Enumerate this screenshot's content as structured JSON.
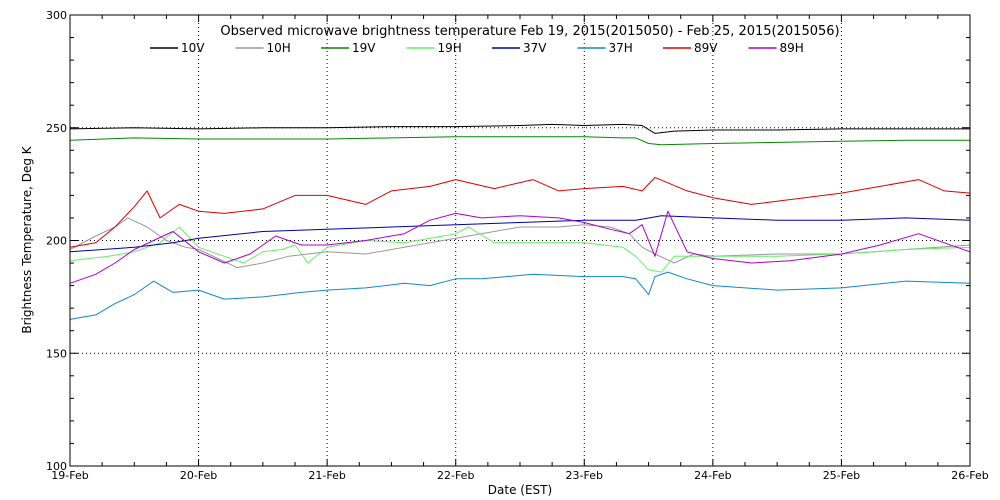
{
  "chart_data": {
    "type": "line",
    "title": "Observed microwave brightness temperature Feb 19, 2015(2015050) - Feb 25, 2015(2015056)",
    "xlabel": "Date (EST)",
    "ylabel": "Brightness Temperature, Deg K",
    "xlim": [
      0,
      7
    ],
    "ylim": [
      100,
      300
    ],
    "x_ticks": [
      {
        "value": 0,
        "label": "19-Feb"
      },
      {
        "value": 1,
        "label": "20-Feb"
      },
      {
        "value": 2,
        "label": "21-Feb"
      },
      {
        "value": 3,
        "label": "22-Feb"
      },
      {
        "value": 4,
        "label": "23-Feb"
      },
      {
        "value": 5,
        "label": "24-Feb"
      },
      {
        "value": 6,
        "label": "25-Feb"
      },
      {
        "value": 7,
        "label": "26-Feb"
      }
    ],
    "y_ticks": [
      {
        "value": 100,
        "label": "100"
      },
      {
        "value": 150,
        "label": "150"
      },
      {
        "value": 200,
        "label": "200"
      },
      {
        "value": 250,
        "label": "250"
      },
      {
        "value": 300,
        "label": "300"
      }
    ],
    "grid": "dotted",
    "legend": "top",
    "series": [
      {
        "name": "10V",
        "color": "#000000",
        "x": [
          0,
          0.5,
          1,
          1.5,
          2,
          2.5,
          3,
          3.5,
          3.75,
          4,
          4.3,
          4.45,
          4.55,
          4.7,
          5,
          5.5,
          6,
          6.5,
          7
        ],
        "y": [
          249.5,
          250,
          249.5,
          250,
          250,
          250.5,
          250.5,
          251,
          251.5,
          251,
          251.5,
          251,
          247.5,
          248.5,
          249,
          249,
          249.5,
          249.5,
          249.5
        ]
      },
      {
        "name": "10H",
        "color": "#999999",
        "x": [
          0,
          0.2,
          0.35,
          0.45,
          0.6,
          0.75,
          0.9,
          1,
          1.15,
          1.3,
          1.5,
          1.7,
          2,
          2.3,
          2.6,
          2.8,
          3,
          3.2,
          3.5,
          3.8,
          4,
          4.2,
          4.35,
          4.45,
          4.55,
          4.7,
          4.85,
          5,
          5.5,
          6,
          6.5,
          7
        ],
        "y": [
          196,
          202,
          206,
          210,
          206,
          200,
          197,
          196,
          192,
          188,
          190,
          193,
          195,
          194,
          197,
          199,
          201,
          203,
          206,
          206,
          207,
          206,
          203,
          197,
          194,
          190,
          194,
          193,
          194,
          194,
          196,
          198
        ]
      },
      {
        "name": "19V",
        "color": "#008800",
        "x": [
          0,
          0.5,
          1,
          1.5,
          2,
          2.5,
          3,
          3.5,
          4,
          4.3,
          4.4,
          4.5,
          4.6,
          5,
          5.5,
          6,
          6.5,
          7
        ],
        "y": [
          244.5,
          245.5,
          245,
          245,
          245,
          245.5,
          246,
          246,
          246,
          245.5,
          245.5,
          243,
          242.5,
          243,
          243.5,
          244,
          244.5,
          244.5
        ]
      },
      {
        "name": "19H",
        "color": "#66ee66",
        "x": [
          0,
          0.3,
          0.5,
          0.7,
          0.85,
          1,
          1.2,
          1.35,
          1.5,
          1.65,
          1.75,
          1.85,
          2,
          2.3,
          2.6,
          2.8,
          3,
          3.1,
          3.3,
          3.6,
          4,
          4.3,
          4.4,
          4.5,
          4.6,
          4.7,
          4.85,
          5,
          5.5,
          6,
          6.5,
          7
        ],
        "y": [
          191,
          193,
          195,
          199,
          206,
          197,
          193,
          190,
          195,
          196,
          198,
          190,
          197,
          200,
          199,
          201,
          203,
          206,
          199,
          199,
          199,
          197,
          193,
          187,
          186,
          193,
          193,
          193,
          193,
          194,
          196,
          197
        ]
      },
      {
        "name": "37V",
        "color": "#0000aa",
        "x": [
          0,
          0.5,
          0.8,
          1,
          1.5,
          2,
          2.5,
          3,
          3.5,
          4,
          4.4,
          4.6,
          5,
          5.5,
          6,
          6.5,
          7
        ],
        "y": [
          195,
          197,
          199,
          201,
          204,
          205,
          206,
          207,
          208,
          209,
          209,
          211,
          210,
          209,
          209,
          210,
          209
        ]
      },
      {
        "name": "37H",
        "color": "#1188cc",
        "x": [
          0,
          0.2,
          0.35,
          0.5,
          0.65,
          0.8,
          1,
          1.2,
          1.5,
          1.8,
          2,
          2.3,
          2.6,
          2.8,
          3,
          3.2,
          3.4,
          3.6,
          4,
          4.3,
          4.4,
          4.5,
          4.55,
          4.65,
          4.8,
          5,
          5.5,
          6,
          6.5,
          7
        ],
        "y": [
          165,
          167,
          172,
          176,
          182,
          177,
          178,
          174,
          175,
          177,
          178,
          179,
          181,
          180,
          183,
          183,
          184,
          185,
          184,
          184,
          183,
          176,
          184,
          186,
          183,
          180,
          178,
          179,
          182,
          181
        ]
      },
      {
        "name": "89V",
        "color": "#dd0000",
        "x": [
          0,
          0.2,
          0.35,
          0.5,
          0.6,
          0.7,
          0.85,
          1,
          1.2,
          1.5,
          1.75,
          2,
          2.3,
          2.5,
          2.8,
          3,
          3.3,
          3.6,
          3.8,
          4,
          4.3,
          4.45,
          4.55,
          4.8,
          5,
          5.3,
          6,
          6.3,
          6.6,
          6.8,
          7
        ],
        "y": [
          197,
          199,
          206,
          215,
          222,
          210,
          216,
          213,
          212,
          214,
          220,
          220,
          216,
          222,
          224,
          227,
          223,
          227,
          222,
          223,
          224,
          222,
          228,
          222,
          219,
          216,
          221,
          224,
          227,
          222,
          221
        ]
      },
      {
        "name": "89H",
        "color": "#aa00cc",
        "x": [
          0,
          0.2,
          0.35,
          0.5,
          0.65,
          0.8,
          1,
          1.2,
          1.4,
          1.6,
          1.8,
          2,
          2.3,
          2.6,
          2.8,
          3,
          3.2,
          3.5,
          3.8,
          4,
          4.2,
          4.35,
          4.45,
          4.55,
          4.65,
          4.8,
          5,
          5.3,
          5.6,
          6,
          6.3,
          6.6,
          6.8,
          7
        ],
        "y": [
          181,
          185,
          190,
          196,
          200,
          204,
          195,
          190,
          194,
          202,
          198,
          198,
          200,
          203,
          209,
          212,
          210,
          211,
          210,
          208,
          205,
          203,
          207,
          193,
          213,
          195,
          192,
          190,
          191,
          194,
          198,
          203,
          199,
          195
        ]
      }
    ]
  }
}
